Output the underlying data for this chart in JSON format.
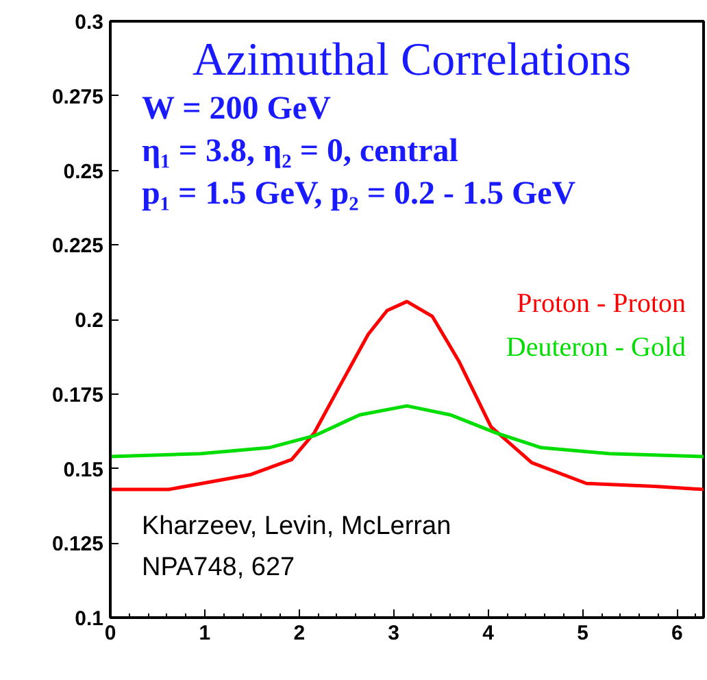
{
  "chart_data": {
    "type": "line",
    "title": "Azimuthal Correlations",
    "annotations": [
      "W = 200 GeV",
      "η₁ = 3.8, η₂ = 0, central",
      "p₁ = 1.5  GeV, p₂ = 0.2 - 1.5 GeV",
      "Kharzeev, Levin, McLerran",
      "NPA748, 627"
    ],
    "xlim": [
      0,
      6.28
    ],
    "xticks": [
      0,
      1,
      2,
      3,
      4,
      5,
      6
    ],
    "ylim": [
      0.1,
      0.3
    ],
    "yticks": [
      0.1,
      0.125,
      0.15,
      0.175,
      0.2,
      0.225,
      0.25,
      0.275,
      0.3
    ],
    "grid": false,
    "legend": "right",
    "marker": "none",
    "line_style": "solid",
    "series": [
      {
        "name": "Proton - Proton",
        "color": "#ff0000",
        "x": [
          0,
          0.62,
          1.49,
          1.92,
          2.16,
          2.4,
          2.73,
          2.93,
          3.14,
          3.41,
          3.69,
          4.03,
          4.46,
          5.04,
          5.76,
          6.28
        ],
        "values": [
          0.143,
          0.143,
          0.148,
          0.153,
          0.162,
          0.176,
          0.195,
          0.203,
          0.206,
          0.201,
          0.186,
          0.164,
          0.152,
          0.145,
          0.144,
          0.143
        ]
      },
      {
        "name": "Deuteron - Gold",
        "color": "#00dd00",
        "x": [
          0,
          0.96,
          1.68,
          2.16,
          2.64,
          3.14,
          3.6,
          4.08,
          4.56,
          5.28,
          6.28
        ],
        "values": [
          0.154,
          0.155,
          0.157,
          0.161,
          0.168,
          0.171,
          0.168,
          0.162,
          0.157,
          0.155,
          0.154
        ]
      }
    ]
  }
}
